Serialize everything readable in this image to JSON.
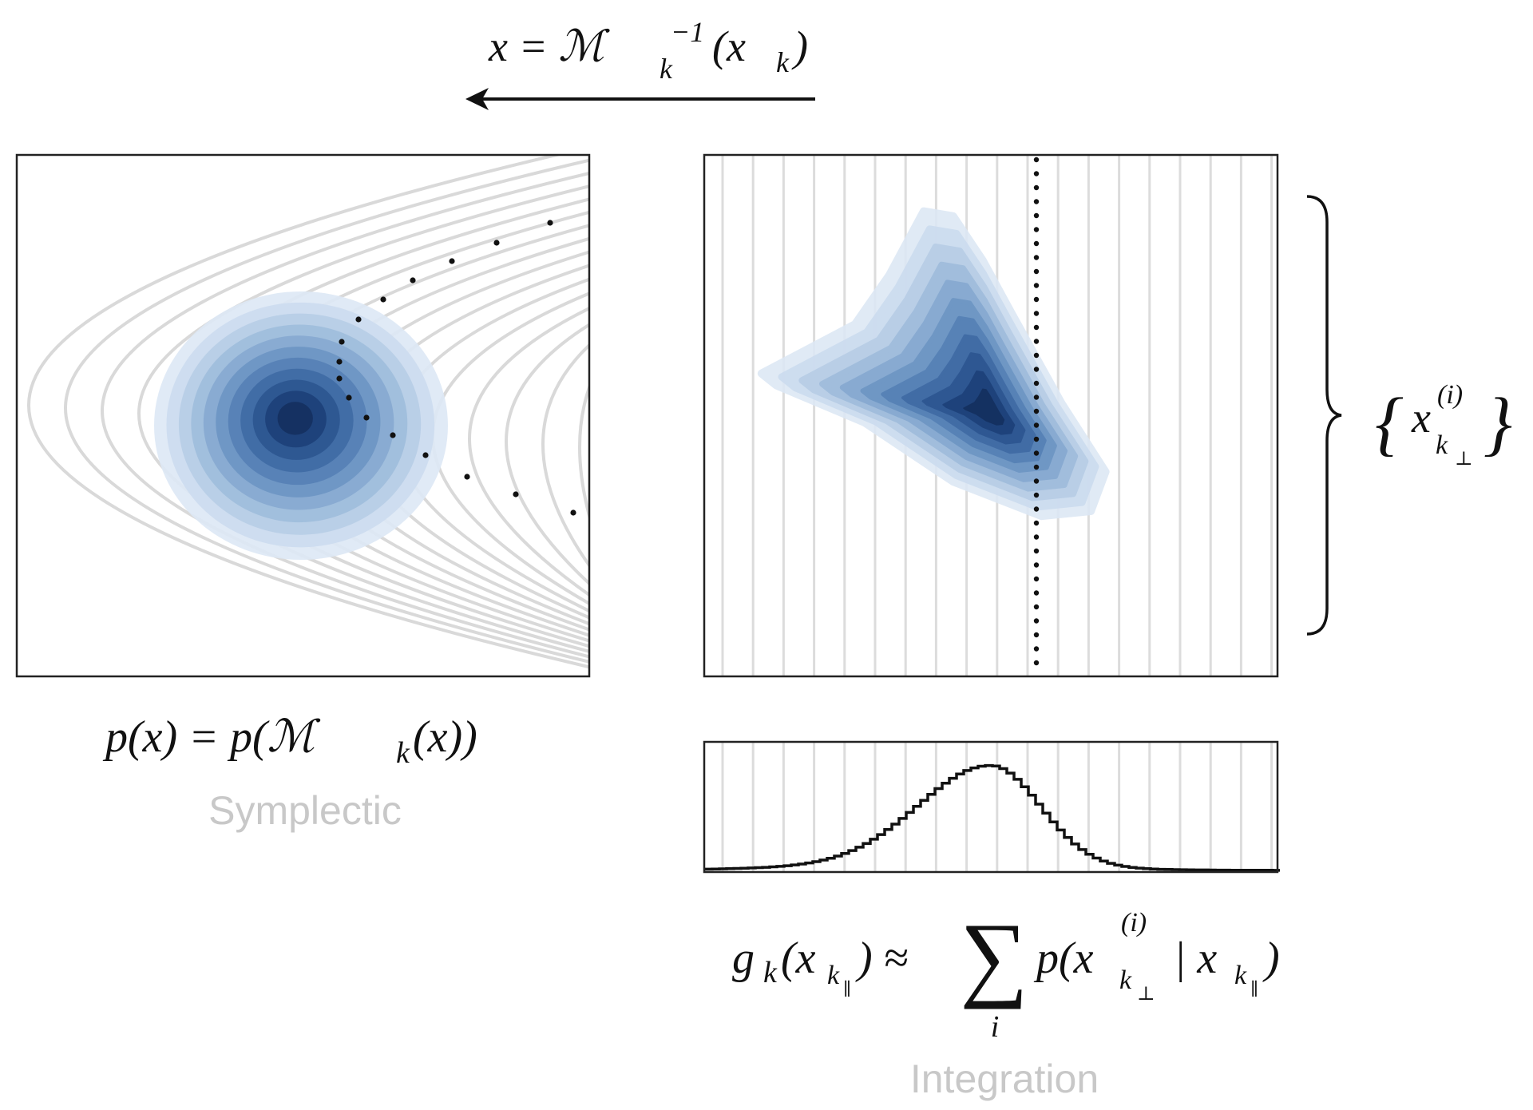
{
  "top_equation": [
    "x = ℳ",
    "k",
    "−1",
    "(x",
    "k",
    ")"
  ],
  "left_equation": [
    "p(x) = p(ℳ",
    "k",
    "(x))"
  ],
  "left_caption": "Symplectic",
  "set_notation": [
    "{",
    "x",
    "(i)",
    "k",
    "⊥",
    "}"
  ],
  "right_equation": [
    "g",
    "k",
    "(x",
    "k",
    "∥",
    ") ≈",
    "∑",
    "i",
    "p(x",
    "(i)",
    "k",
    "⊥",
    "| x",
    "k",
    "∥",
    ")"
  ],
  "right_caption": "Integration"
}
